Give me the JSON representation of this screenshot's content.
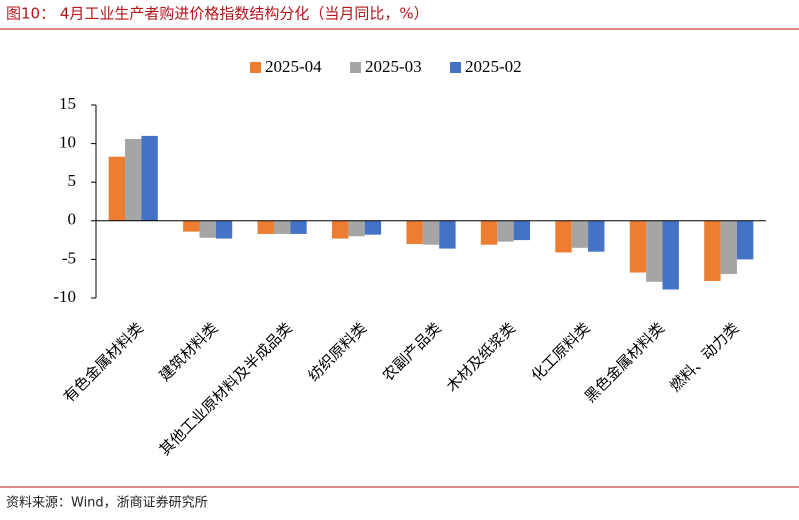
{
  "chart_data": {
    "type": "bar",
    "title": "图10： 4月工业生产者购进价格指数结构分化（当月同比，%）",
    "source": "资料来源：Wind，浙商证券研究所",
    "categories": [
      "有色金属材料类",
      "建筑材料类",
      "其他工业原材料及半成品类",
      "纺织原料类",
      "农副产品类",
      "木材及纸浆类",
      "化工原料类",
      "黑色金属材料类",
      "燃料、动力类"
    ],
    "series": [
      {
        "name": "2025-04",
        "color": "#ed7d31",
        "values": [
          8.3,
          -1.4,
          -1.7,
          -2.3,
          -3.0,
          -3.1,
          -4.1,
          -6.7,
          -7.8
        ]
      },
      {
        "name": "2025-03",
        "color": "#a5a5a5",
        "values": [
          10.6,
          -2.2,
          -1.7,
          -2.0,
          -3.1,
          -2.7,
          -3.5,
          -7.9,
          -6.9
        ]
      },
      {
        "name": "2025-02",
        "color": "#4472c4",
        "values": [
          11.0,
          -2.3,
          -1.7,
          -1.8,
          -3.6,
          -2.5,
          -4.0,
          -8.9,
          -5.0
        ]
      }
    ],
    "ylim": [
      -10,
      15
    ],
    "yticks": [
      -10,
      -5,
      0,
      5,
      10,
      15
    ],
    "legend": "top"
  }
}
